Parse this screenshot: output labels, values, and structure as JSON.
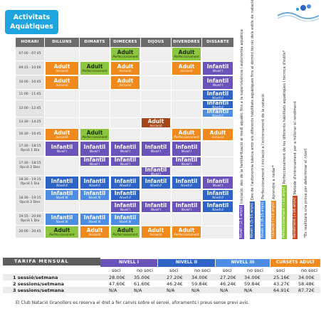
{
  "title": {
    "line1": "Activitats",
    "line2": "Aquàtiques"
  },
  "days": [
    "HORARI",
    "DILLUNS",
    "DIMARTS",
    "DIMECRES",
    "DIJOUS",
    "DIVENDRES",
    "DISSABTE"
  ],
  "times": [
    [
      "07:00 - 07:45"
    ],
    [
      "09:15 - 10:00"
    ],
    [
      "10:00 - 10:45"
    ],
    [
      "11:00 - 11:45"
    ],
    [
      "12:00 - 12:45"
    ],
    [
      "13:30 - 14:25"
    ],
    [
      "16:30 - 16:45"
    ],
    [
      "17:30 - 18:15",
      "Opció 1 Dia"
    ],
    [
      "17:30 - 18:15",
      "Opció 2 Dies"
    ],
    [
      "18:30 - 19:15",
      "Opció 1 Dia"
    ],
    [
      "18:30 - 19:15",
      "Opció 2 Dies"
    ],
    [
      "19:15 - 20:00",
      "Opció 1 Dia"
    ],
    [
      "20:00 - 20:45"
    ]
  ],
  "blocks": [
    {
      "a": "Adult",
      "b": "Perfeccionament",
      "c": "c-perf"
    },
    {
      "a": "Adult",
      "b": "Perfeccionament",
      "c": "c-perf"
    },
    {
      "a": "Adult",
      "b": "Iniciació",
      "c": "c-ini"
    },
    {
      "a": "Adult",
      "b": "Perfeccionament",
      "c": "c-perf"
    },
    {
      "a": "Adult",
      "b": "Iniciació",
      "c": "c-ini"
    },
    {
      "a": "Adult",
      "b": "Iniciació",
      "c": "c-ini"
    },
    {
      "a": "Infantil",
      "b": "Nivell I",
      "c": "c-inf1"
    },
    {
      "a": "Adult",
      "b": "Iniciació",
      "c": "c-ini"
    },
    {
      "a": "Adult",
      "b": "Iniciació",
      "c": "c-ini"
    },
    {
      "a": "Infantil",
      "b": "Nivell I",
      "c": "c-inf1"
    },
    {
      "a": "Infantil",
      "b": "Nivell II",
      "c": "c-inf2"
    },
    {
      "a": "Infantil",
      "b": "Nivell II",
      "c": "c-inf2"
    },
    {
      "a": "Infantil",
      "b": "Nivell II",
      "c": "c-inf3"
    },
    {
      "a": "Adult",
      "b": "Iniciació",
      "c": "c-adult-b"
    },
    {
      "a": "Adult",
      "b": "Iniciació",
      "c": "c-ini"
    },
    {
      "a": "Adult",
      "b": "Perfeccionament",
      "c": "c-perf"
    },
    {
      "a": "Adult",
      "b": "Perfeccionament",
      "c": "c-ini"
    },
    {
      "a": "Adult",
      "b": "Iniciació",
      "c": "c-ini"
    },
    {
      "a": "Infantil",
      "b": "Nivell I",
      "c": "c-inf1"
    },
    {
      "a": "Infantil",
      "b": "Nivell I",
      "c": "c-inf1"
    },
    {
      "a": "Infantil",
      "b": "Nivell I",
      "c": "c-inf1"
    },
    {
      "a": "Infantil",
      "b": "Nivell I",
      "c": "c-inf1"
    },
    {
      "a": "Infantil",
      "b": "Nivell I",
      "c": "c-inf1"
    },
    {
      "a": "Infantil",
      "b": "Nivell I",
      "c": "c-inf1"
    },
    {
      "a": "Infantil",
      "b": "Nivell I",
      "c": "c-inf1"
    },
    {
      "a": "Infantil",
      "b": "Nivell I",
      "c": "c-inf1"
    },
    {
      "a": "Infantil",
      "b": "Nivell I",
      "c": "c-inf1"
    },
    {
      "a": "Infantil",
      "b": "Nivell II",
      "c": "c-inf2"
    },
    {
      "a": "Infantil",
      "b": "Nivell II",
      "c": "c-inf2"
    },
    {
      "a": "Infantil",
      "b": "Nivell II",
      "c": "c-inf2"
    },
    {
      "a": "Infantil",
      "b": "Nivell II",
      "c": "c-inf2"
    },
    {
      "a": "Infantil",
      "b": "Nivell II",
      "c": "c-inf2"
    },
    {
      "a": "Infantil",
      "b": "Nivell II",
      "c": "c-inf2"
    },
    {
      "a": "Infantil",
      "b": "Nivell III",
      "c": "c-inf3"
    },
    {
      "a": "Infantil",
      "b": "Nivell III",
      "c": "c-inf3"
    },
    {
      "a": "Infantil",
      "b": "Nivell I",
      "c": "c-inf1"
    },
    {
      "a": "Infantil",
      "b": "Nivell I",
      "c": "c-inf1"
    },
    {
      "a": "Infantil",
      "b": "Nivell I",
      "c": "c-inf1"
    },
    {
      "a": "Infantil",
      "b": "Nivell I",
      "c": "c-inf1"
    },
    {
      "a": "Infantil",
      "b": "Nivell II",
      "c": "c-inf2"
    },
    {
      "a": "Infantil",
      "b": "Nivell II",
      "c": "c-inf2"
    },
    {
      "a": "Infantil",
      "b": "Nivell III",
      "c": "c-inf3"
    },
    {
      "a": "Infantil",
      "b": "Nivell III",
      "c": "c-inf3"
    },
    {
      "a": "Infantil",
      "b": "Nivell III",
      "c": "c-inf3"
    },
    {
      "a": "Adult",
      "b": "Perfeccionament",
      "c": "c-perf"
    },
    {
      "a": "Adult",
      "b": "Iniciació",
      "c": "c-ini"
    },
    {
      "a": "Adult",
      "b": "Perfeccionament",
      "c": "c-perf"
    },
    {
      "a": "Adult",
      "b": "Iniciació",
      "c": "c-ini"
    },
    {
      "a": "Adult",
      "b": "Perfeccionament",
      "c": "c-ini"
    }
  ],
  "legend": [
    {
      "tag": "Nivell I (2-5 anys)",
      "text": "Iniciació: des de la familiarització al medi aquàtic fins a la supervivència i autonomia aquàtica",
      "color": "#6a54b9"
    },
    {
      "tag": "Nivell II (5-15 anys)",
      "text": "Des de l'autonomia bàsica amb els diferents hàbilitats aquàtiques fins al domini tècnic dels estils de natació",
      "color": "#2e64c5"
    },
    {
      "tag": "Nivell III (8-15 anys)",
      "text": "Perfeccionament i iniciació a l'entrenament de la natació",
      "color": "#4e8de4"
    },
    {
      "tag": "Iniciació (+16 anys)",
      "text": "Aprendre a nedar*",
      "color": "#f08a1c"
    },
    {
      "tag": "Perfeccionament (+16 anys)",
      "text": "Perfeccionament de les diferents hàbilitats aquàtiques i tècnica d'estils*",
      "color": "#8cc53f"
    },
    {
      "tag": "Rendiment (+16 anys)",
      "text": "Mètode d'entrenament per a millorar el rendiment",
      "color": "#d0461a"
    },
    {
      "tag": "",
      "text": "*Es realitzarà una prova per determinar el nivell",
      "color": ""
    }
  ],
  "tarifa": {
    "title": "TARIFA MENSUAL",
    "groups": [
      {
        "name": "NIVELL I",
        "color": "#6a54b9"
      },
      {
        "name": "NIVELL II",
        "color": "#2e64c5"
      },
      {
        "name": "NIVELL III",
        "color": "#4e8de4"
      },
      {
        "name": "CURSETS ADULT",
        "color": "#f08a1c"
      }
    ],
    "sub": [
      "soci",
      "no soci"
    ],
    "rows": [
      {
        "label": "1 sessió/setmana",
        "vals": [
          "28.00€",
          "35.00€",
          "27.20€",
          "34.00€",
          "27.20€",
          "34.00€",
          "25.16€",
          "34.00€"
        ]
      },
      {
        "label": "2 sessions/setmana",
        "vals": [
          "47.60€",
          "61.60€",
          "46.24€",
          "59.84€",
          "46.24€",
          "59.84€",
          "43.27€",
          "58.48€"
        ]
      },
      {
        "label": "3 sessions/setmana",
        "vals": [
          "N/A",
          "N/A",
          "N/A",
          "N/A",
          "N/A",
          "N/A",
          "64.91€",
          "87.72€"
        ]
      }
    ]
  },
  "footnote": "El Club Natació Granollers es reserva el dret a fer canvis sobre el servei, aforaments i preus sense previ avis."
}
